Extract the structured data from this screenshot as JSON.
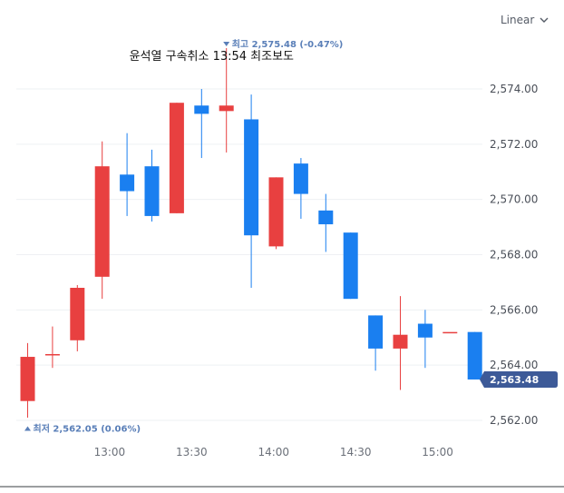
{
  "scale_selector": {
    "label": "Linear",
    "icon": "chevron-down-icon"
  },
  "chart_data": {
    "type": "candlestick",
    "title": "",
    "xlabel": "",
    "ylabel": "",
    "ylim": [
      2561.5,
      2575.5
    ],
    "y_ticks": [
      "2,562.00",
      "2,564.00",
      "2,566.00",
      "2,568.00",
      "2,570.00",
      "2,572.00",
      "2,574.00"
    ],
    "y_tick_values": [
      2562,
      2564,
      2566,
      2568,
      2570,
      2572,
      2574
    ],
    "x_ticks": [
      "13:00",
      "13:30",
      "14:00",
      "14:30",
      "15:00"
    ],
    "x_tick_index": [
      3.3,
      6.6,
      9.9,
      13.2,
      16.5
    ],
    "grid": true,
    "colors": {
      "up": "#e84040",
      "down": "#1a7ff0",
      "flat": "#e84040",
      "last_badge": "#3d5a98",
      "extreme_label": "#5a7fb8"
    },
    "candles": [
      {
        "open": 2562.7,
        "high": 2564.8,
        "low": 2562.1,
        "close": 2564.3
      },
      {
        "open": 2564.4,
        "high": 2565.4,
        "low": 2563.9,
        "close": 2564.4
      },
      {
        "open": 2564.9,
        "high": 2566.9,
        "low": 2564.5,
        "close": 2566.8
      },
      {
        "open": 2567.2,
        "high": 2572.1,
        "low": 2566.4,
        "close": 2571.2
      },
      {
        "open": 2570.9,
        "high": 2572.4,
        "low": 2569.4,
        "close": 2570.3
      },
      {
        "open": 2571.2,
        "high": 2571.8,
        "low": 2569.2,
        "close": 2569.4
      },
      {
        "open": 2569.5,
        "high": 2573.5,
        "low": 2569.5,
        "close": 2573.5
      },
      {
        "open": 2573.4,
        "high": 2574.0,
        "low": 2571.5,
        "close": 2573.1
      },
      {
        "open": 2573.2,
        "high": 2575.48,
        "low": 2571.7,
        "close": 2573.4
      },
      {
        "open": 2572.9,
        "high": 2573.8,
        "low": 2566.8,
        "close": 2568.7
      },
      {
        "open": 2568.3,
        "high": 2570.8,
        "low": 2568.2,
        "close": 2570.8
      },
      {
        "open": 2571.3,
        "high": 2571.5,
        "low": 2569.3,
        "close": 2570.2
      },
      {
        "open": 2569.6,
        "high": 2570.2,
        "low": 2568.1,
        "close": 2569.1
      },
      {
        "open": 2568.8,
        "high": 2568.8,
        "low": 2566.4,
        "close": 2566.4
      },
      {
        "open": 2565.8,
        "high": 2565.8,
        "low": 2563.8,
        "close": 2564.6
      },
      {
        "open": 2564.6,
        "high": 2566.5,
        "low": 2563.1,
        "close": 2565.1
      },
      {
        "open": 2565.5,
        "high": 2566.0,
        "low": 2563.9,
        "close": 2565.0
      },
      {
        "open": 2565.2,
        "high": 2565.2,
        "low": 2565.2,
        "close": 2565.2
      },
      {
        "open": 2565.2,
        "high": 2565.2,
        "low": 2563.48,
        "close": 2563.48
      }
    ],
    "high_label": {
      "candle_index": 8,
      "value": 2575.48,
      "text": "최고 2,575.48 (-0.47%)"
    },
    "low_label": {
      "candle_index": 0,
      "value": 2562.05,
      "text": "최저 2,562.05 (0.06%)"
    },
    "annotation": {
      "candle_index": 7,
      "text": "윤석열 구속취소 13:54 최조보도"
    },
    "last_price": {
      "value": 2563.48,
      "label": "2,563.48"
    }
  }
}
